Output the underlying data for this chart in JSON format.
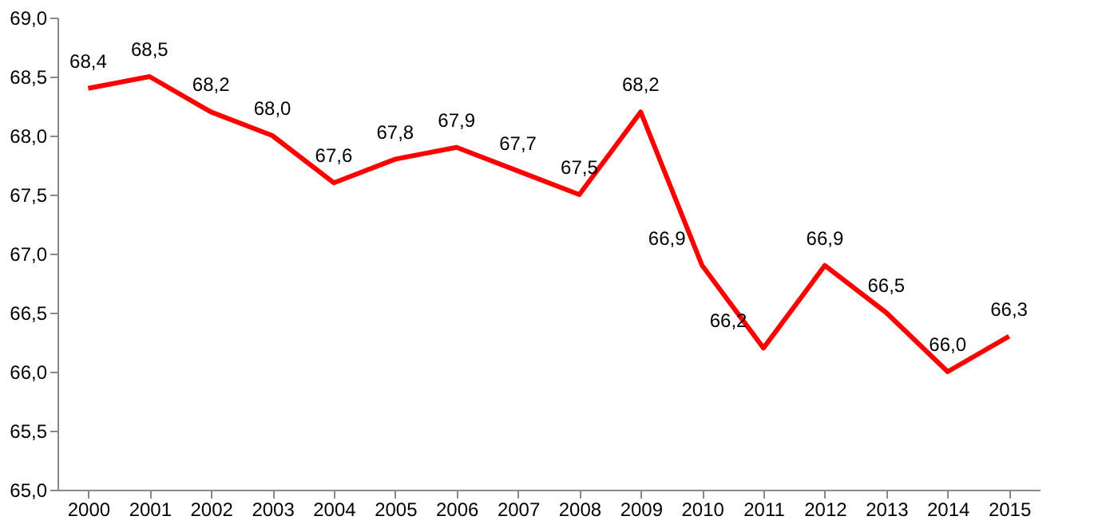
{
  "chart_data": {
    "type": "line",
    "categories": [
      "2000",
      "2001",
      "2002",
      "2003",
      "2004",
      "2005",
      "2006",
      "2007",
      "2008",
      "2009",
      "2010",
      "2011",
      "2012",
      "2013",
      "2014",
      "2015"
    ],
    "series": [
      {
        "color": "#ff0000",
        "values": [
          68.4,
          68.5,
          68.2,
          68.0,
          67.6,
          67.8,
          67.9,
          67.7,
          67.5,
          68.2,
          66.9,
          66.2,
          66.9,
          66.5,
          66.0,
          66.3
        ],
        "value_labels": [
          "68,4",
          "68,5",
          "68,2",
          "68,0",
          "67,6",
          "67,8",
          "67,9",
          "67,7",
          "67,5",
          "68,2",
          "66,9",
          "66,2",
          "66,9",
          "66,5",
          "66,0",
          "66,3"
        ]
      }
    ],
    "ylim": [
      65,
      69
    ],
    "yticks": [
      {
        "value": 65,
        "label": "65,0"
      },
      {
        "value": 65.5,
        "label": "65,5"
      },
      {
        "value": 66,
        "label": "66,0"
      },
      {
        "value": 66.5,
        "label": "66,5"
      },
      {
        "value": 67,
        "label": "67,0"
      },
      {
        "value": 67.5,
        "label": "67,5"
      },
      {
        "value": 68,
        "label": "68,0"
      },
      {
        "value": 68.5,
        "label": "68,5"
      },
      {
        "value": 69,
        "label": "69,0"
      }
    ],
    "grid": false,
    "marker": "none",
    "line_style": "solid"
  }
}
